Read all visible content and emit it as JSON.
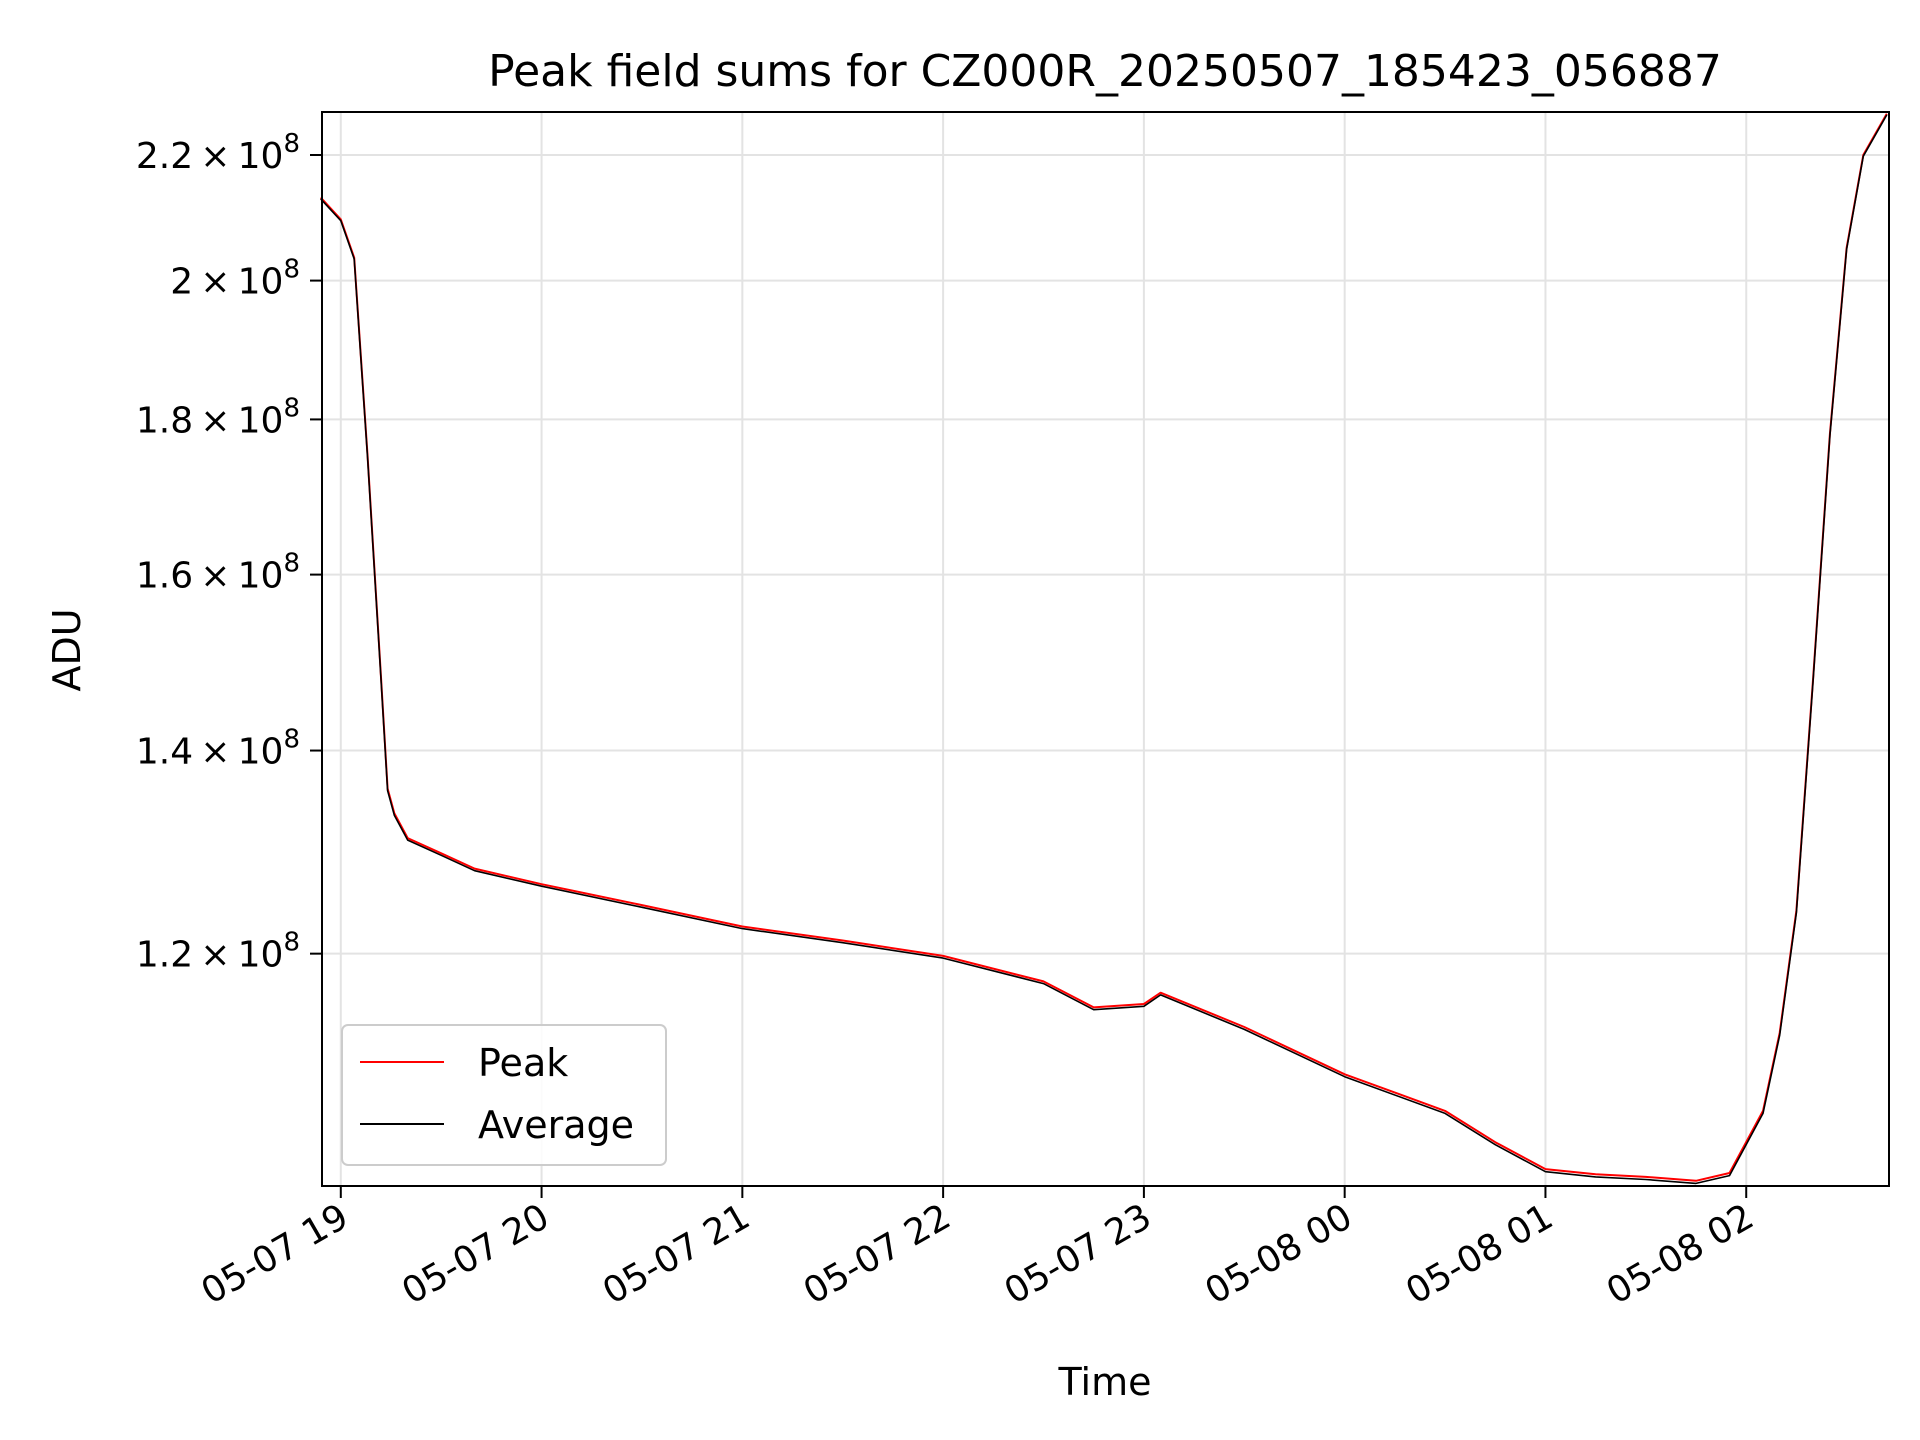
{
  "chart_data": {
    "type": "line",
    "title": "Peak field sums for CZ000R_20250507_185423_056887",
    "xlabel": "Time",
    "ylabel": "ADU",
    "yscale": "log",
    "ylim": [
      100600000,
      227300000
    ],
    "xlim": [
      "2025-05-07 18:54:23",
      "2025-05-08 02:42:40"
    ],
    "grid": true,
    "legend_position": "lower-left",
    "x_ticks": [
      {
        "value": "2025-05-07 19:00",
        "label": "05-07 19"
      },
      {
        "value": "2025-05-07 20:00",
        "label": "05-07 20"
      },
      {
        "value": "2025-05-07 21:00",
        "label": "05-07 21"
      },
      {
        "value": "2025-05-07 22:00",
        "label": "05-07 22"
      },
      {
        "value": "2025-05-07 23:00",
        "label": "05-07 23"
      },
      {
        "value": "2025-05-08 00:00",
        "label": "05-08 00"
      },
      {
        "value": "2025-05-08 01:00",
        "label": "05-08 01"
      },
      {
        "value": "2025-05-08 02:00",
        "label": "05-08 02"
      }
    ],
    "y_ticks": [
      {
        "value": 120000000,
        "mantissa": "1.2",
        "base": "10",
        "exponent": "8"
      },
      {
        "value": 140000000,
        "mantissa": "1.4",
        "base": "10",
        "exponent": "8"
      },
      {
        "value": 160000000,
        "mantissa": "1.6",
        "base": "10",
        "exponent": "8"
      },
      {
        "value": 180000000,
        "mantissa": "1.8",
        "base": "10",
        "exponent": "8"
      },
      {
        "value": 200000000,
        "mantissa": "2",
        "base": "10",
        "exponent": "8"
      },
      {
        "value": 220000000,
        "mantissa": "2.2",
        "base": "10",
        "exponent": "8"
      }
    ],
    "series": [
      {
        "name": "Peak",
        "color": "#ff0000",
        "x": [
          "2025-05-07 18:54",
          "2025-05-07 19:00",
          "2025-05-07 19:04",
          "2025-05-07 19:08",
          "2025-05-07 19:12",
          "2025-05-07 19:14",
          "2025-05-07 19:16",
          "2025-05-07 19:20",
          "2025-05-07 19:30",
          "2025-05-07 19:40",
          "2025-05-07 20:00",
          "2025-05-07 20:30",
          "2025-05-07 21:00",
          "2025-05-07 21:30",
          "2025-05-07 22:00",
          "2025-05-07 22:30",
          "2025-05-07 22:45",
          "2025-05-07 23:00",
          "2025-05-07 23:05",
          "2025-05-07 23:30",
          "2025-05-08 00:00",
          "2025-05-08 00:30",
          "2025-05-08 00:45",
          "2025-05-08 01:00",
          "2025-05-08 01:15",
          "2025-05-08 01:30",
          "2025-05-08 01:45",
          "2025-05-08 01:55",
          "2025-05-08 02:05",
          "2025-05-08 02:10",
          "2025-05-08 02:15",
          "2025-05-08 02:20",
          "2025-05-08 02:25",
          "2025-05-08 02:30",
          "2025-05-08 02:35",
          "2025-05-08 02:42"
        ],
        "values": [
          213000000,
          209500000,
          203500000,
          175000000,
          148000000,
          136000000,
          133500000,
          131000000,
          129500000,
          128000000,
          126500000,
          124500000,
          122500000,
          121200000,
          119800000,
          117500000,
          115200000,
          115500000,
          116500000,
          113500000,
          109500000,
          106500000,
          104000000,
          101900000,
          101500000,
          101300000,
          101000000,
          101600000,
          106500000,
          113000000,
          124000000,
          148000000,
          178000000,
          205000000,
          220000000,
          227000000
        ]
      },
      {
        "name": "Average",
        "color": "#000000",
        "x": [
          "2025-05-07 18:54",
          "2025-05-07 19:00",
          "2025-05-07 19:04",
          "2025-05-07 19:08",
          "2025-05-07 19:12",
          "2025-05-07 19:14",
          "2025-05-07 19:16",
          "2025-05-07 19:20",
          "2025-05-07 19:30",
          "2025-05-07 19:40",
          "2025-05-07 20:00",
          "2025-05-07 20:30",
          "2025-05-07 21:00",
          "2025-05-07 21:30",
          "2025-05-07 22:00",
          "2025-05-07 22:30",
          "2025-05-07 22:45",
          "2025-05-07 23:00",
          "2025-05-07 23:05",
          "2025-05-07 23:30",
          "2025-05-08 00:00",
          "2025-05-08 00:30",
          "2025-05-08 00:45",
          "2025-05-08 01:00",
          "2025-05-08 01:15",
          "2025-05-08 01:30",
          "2025-05-08 01:45",
          "2025-05-08 01:55",
          "2025-05-08 02:05",
          "2025-05-08 02:10",
          "2025-05-08 02:15",
          "2025-05-08 02:20",
          "2025-05-08 02:25",
          "2025-05-08 02:30",
          "2025-05-08 02:35",
          "2025-05-08 02:42"
        ],
        "values": [
          212800000,
          209300000,
          203300000,
          174800000,
          147800000,
          135800000,
          133300000,
          130800000,
          129300000,
          127800000,
          126300000,
          124300000,
          122300000,
          121000000,
          119600000,
          117300000,
          115000000,
          115300000,
          116300000,
          113300000,
          109300000,
          106300000,
          103800000,
          101700000,
          101300000,
          101100000,
          100800000,
          101400000,
          106300000,
          112800000,
          123800000,
          147800000,
          177800000,
          204800000,
          219800000,
          226800000
        ]
      }
    ]
  }
}
